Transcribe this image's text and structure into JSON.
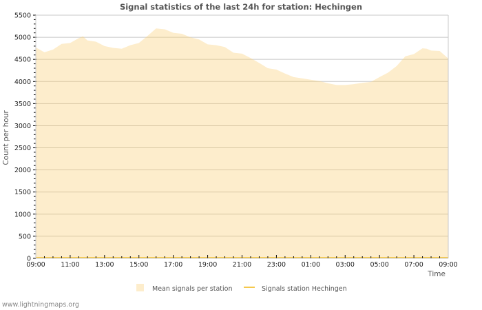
{
  "title": "Signal statistics of the last 24h for station: Hechingen",
  "footer": "www.lightningmaps.org",
  "colors": {
    "area_fill": "#fdedcc",
    "station_line": "#f5c84c",
    "grid": "#c8c8c8",
    "grid_inside": "#d8c7a3",
    "title": "#555555"
  },
  "legend": [
    {
      "label": "Mean signals per station",
      "type": "area",
      "color": "#fdedcc"
    },
    {
      "label": "Signals station Hechingen",
      "type": "line",
      "color": "#f5c84c"
    }
  ],
  "chart_data": {
    "type": "area",
    "title": "Signal statistics of the last 24h for station: Hechingen",
    "xlabel": "Time",
    "ylabel": "Count per hour",
    "ylim": [
      0,
      5500
    ],
    "yticks": [
      0,
      500,
      1000,
      1500,
      2000,
      2500,
      3000,
      3500,
      4000,
      4500,
      5000,
      5500
    ],
    "xticks": [
      "09:00",
      "11:00",
      "13:00",
      "15:00",
      "17:00",
      "19:00",
      "21:00",
      "23:00",
      "01:00",
      "03:00",
      "05:00",
      "07:00",
      "09:00"
    ],
    "grid": true,
    "legend_position": "bottom",
    "x_hours": [
      0,
      0.5,
      1,
      1.5,
      2,
      2.5,
      2.75,
      3,
      3.5,
      4,
      4.5,
      5,
      5.5,
      6,
      6.5,
      7,
      7.5,
      8,
      8.5,
      9,
      9.5,
      10,
      10.5,
      11,
      11.5,
      12,
      12.5,
      13,
      13.5,
      14,
      14.5,
      15,
      15.5,
      16,
      16.5,
      17,
      17.5,
      18,
      18.5,
      19,
      19.5,
      20,
      20.5,
      21,
      21.5,
      22,
      22.5,
      22.75,
      23,
      23.5,
      24
    ],
    "series": [
      {
        "name": "Mean signals per station",
        "values": [
          4770,
          4660,
          4720,
          4850,
          4870,
          4980,
          5020,
          4930,
          4900,
          4800,
          4760,
          4740,
          4820,
          4870,
          5030,
          5200,
          5180,
          5100,
          5080,
          5000,
          4950,
          4840,
          4820,
          4780,
          4650,
          4630,
          4530,
          4420,
          4300,
          4270,
          4180,
          4100,
          4070,
          4040,
          4010,
          3960,
          3920,
          3920,
          3940,
          3970,
          3990,
          4100,
          4200,
          4350,
          4570,
          4620,
          4750,
          4740,
          4700,
          4690,
          4520
        ]
      },
      {
        "name": "Signals station Hechingen",
        "values": [
          0,
          0,
          0,
          0,
          0,
          0,
          0,
          0,
          0,
          0,
          0,
          0,
          0,
          0,
          0,
          0,
          0,
          0,
          0,
          0,
          0,
          0,
          0,
          0,
          0,
          0,
          0,
          0,
          0,
          0,
          0,
          0,
          0,
          0,
          0,
          0,
          0,
          0,
          0,
          0,
          0,
          0,
          0,
          0,
          0,
          0,
          0,
          0,
          0,
          0,
          0
        ]
      }
    ]
  }
}
